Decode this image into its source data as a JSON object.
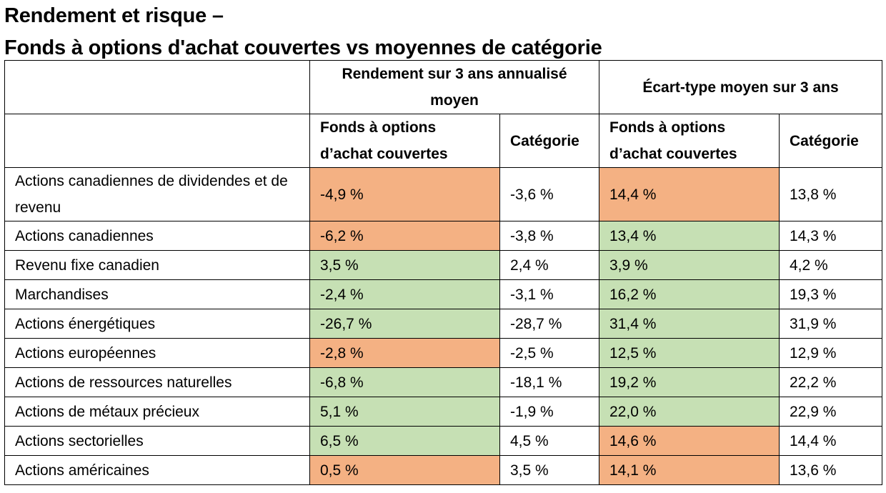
{
  "title": [
    "Rendement et risque –",
    "Fonds à options d'achat couvertes vs moyennes de catégorie"
  ],
  "colors": {
    "better": "#c6e0b4",
    "worse": "#f4b183"
  },
  "chart_data": {
    "type": "table",
    "group_headers": [
      "Rendement sur 3 ans annualisé moyen",
      "Écart-type moyen sur 3 ans"
    ],
    "columns": [
      "Fonds à options d’achat couvertes",
      "Catégorie",
      "Fonds à options d’achat couvertes",
      "Catégorie"
    ],
    "rows": [
      {
        "label": "Actions canadiennes de dividendes et de revenu",
        "values": [
          "-4,9 %",
          "-3,6 %",
          "14,4 %",
          "13,8 %"
        ],
        "highlight": [
          "worse",
          "worse"
        ]
      },
      {
        "label": "Actions canadiennes",
        "values": [
          "-6,2 %",
          "-3,8 %",
          "13,4 %",
          "14,3 %"
        ],
        "highlight": [
          "worse",
          "better"
        ]
      },
      {
        "label": "Revenu fixe canadien",
        "values": [
          "3,5 %",
          "2,4 %",
          "3,9 %",
          "4,2 %"
        ],
        "highlight": [
          "better",
          "better"
        ]
      },
      {
        "label": "Marchandises",
        "values": [
          "-2,4 %",
          "-3,1 %",
          "16,2 %",
          "19,3 %"
        ],
        "highlight": [
          "better",
          "better"
        ]
      },
      {
        "label": "Actions énergétiques",
        "values": [
          "-26,7 %",
          "-28,7 %",
          "31,4 %",
          "31,9 %"
        ],
        "highlight": [
          "better",
          "better"
        ]
      },
      {
        "label": "Actions européennes",
        "values": [
          "-2,8 %",
          "-2,5 %",
          "12,5 %",
          "12,9 %"
        ],
        "highlight": [
          "worse",
          "better"
        ]
      },
      {
        "label": "Actions de ressources naturelles",
        "values": [
          "-6,8 %",
          "-18,1 %",
          "19,2 %",
          "22,2 %"
        ],
        "highlight": [
          "better",
          "better"
        ]
      },
      {
        "label": "Actions de métaux précieux",
        "values": [
          "5,1 %",
          "-1,9 %",
          "22,0 %",
          "22,9 %"
        ],
        "highlight": [
          "better",
          "better"
        ]
      },
      {
        "label": "Actions sectorielles",
        "values": [
          "6,5 %",
          "4,5 %",
          "14,6 %",
          "14,4 %"
        ],
        "highlight": [
          "better",
          "worse"
        ]
      },
      {
        "label": "Actions américaines",
        "values": [
          "0,5 %",
          "3,5 %",
          "14,1 %",
          "13,6 %"
        ],
        "highlight": [
          "worse",
          "worse"
        ]
      }
    ]
  }
}
